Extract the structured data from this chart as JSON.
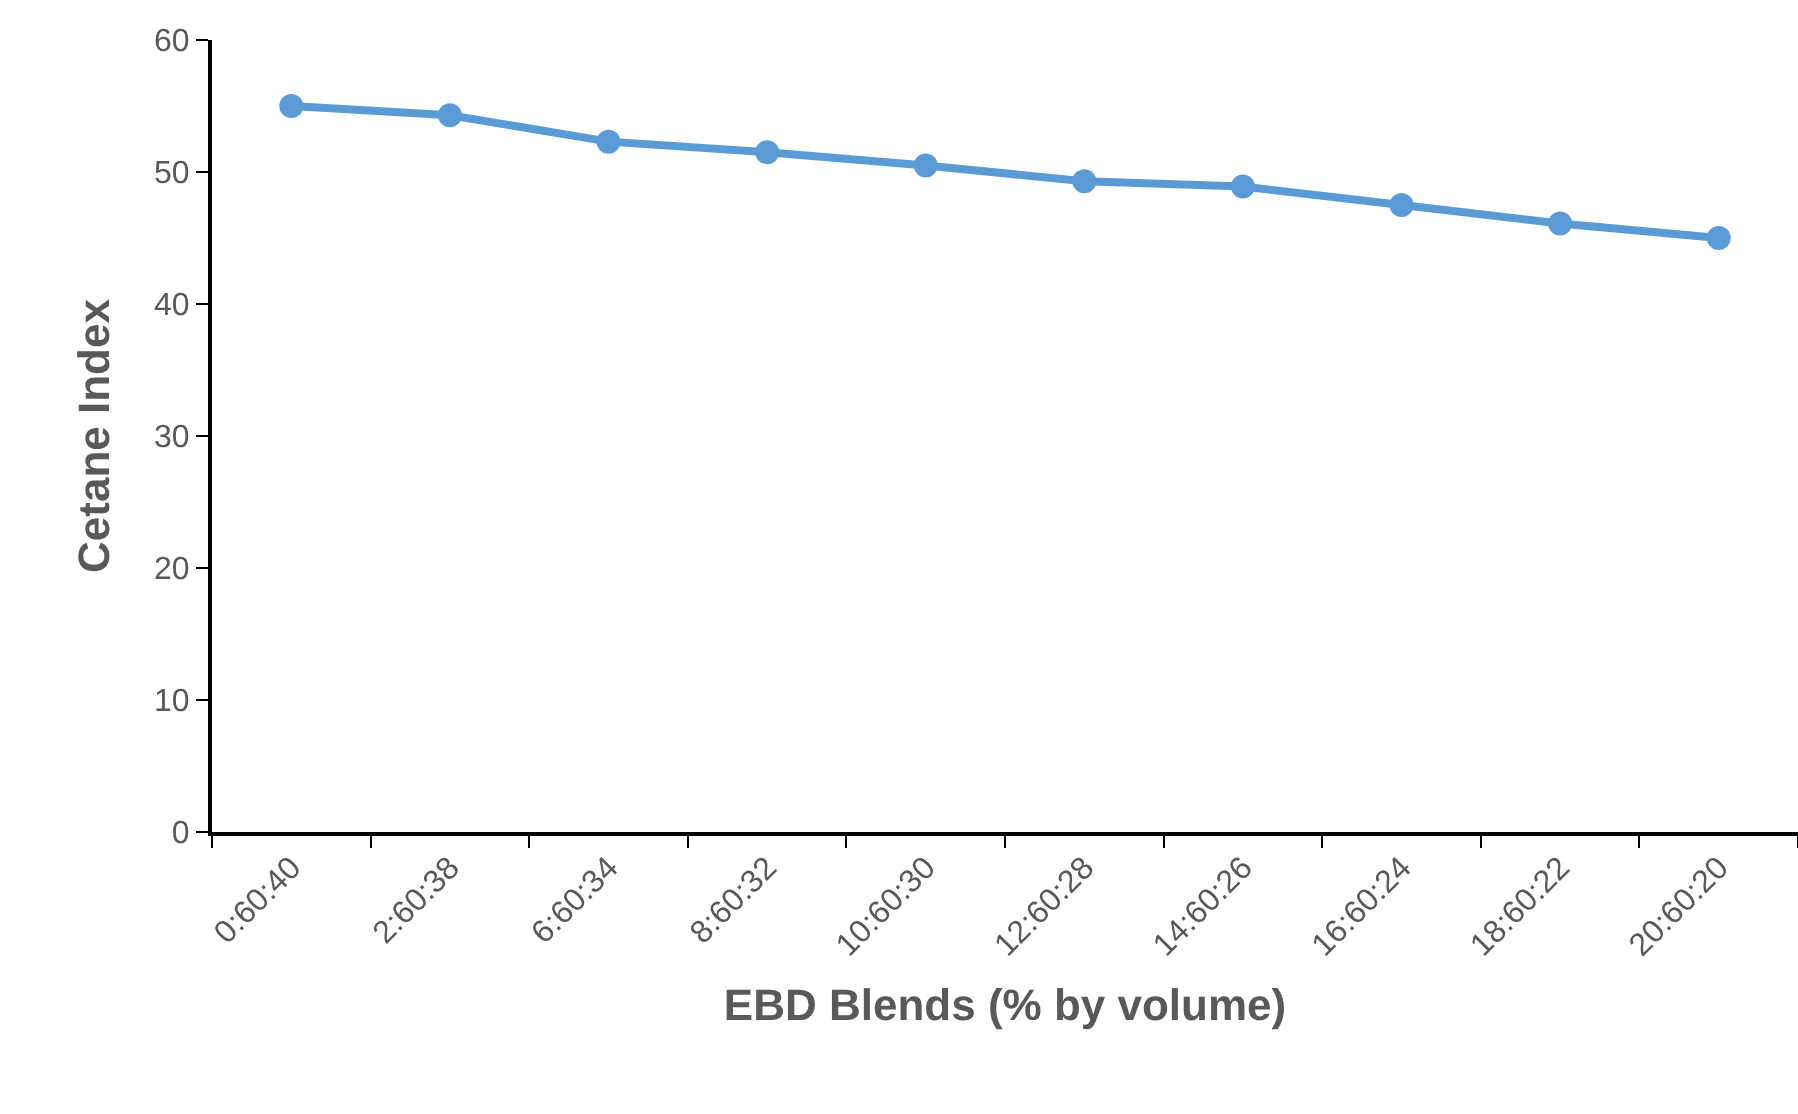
{
  "chart_data": {
    "type": "line",
    "xlabel": "EBD Blends (% by volume)",
    "ylabel": "Cetane Index",
    "categories": [
      "0:60:40",
      "2:60:38",
      "6:60:34",
      "8:60:32",
      "10:60:30",
      "12:60:28",
      "14:60:26",
      "16:60:24",
      "18:60:22",
      "20:60:20"
    ],
    "series": [
      {
        "color": "#5b9bd5",
        "values": [
          55.0,
          54.3,
          52.3,
          51.5,
          50.5,
          49.3,
          48.9,
          47.5,
          46.1,
          45.0
        ]
      }
    ],
    "ylim": [
      0,
      60
    ],
    "yticks": [
      0,
      10,
      20,
      30,
      40,
      50,
      60
    ],
    "grid": false,
    "legend": false,
    "marker": "circle",
    "line_style": "solid"
  }
}
